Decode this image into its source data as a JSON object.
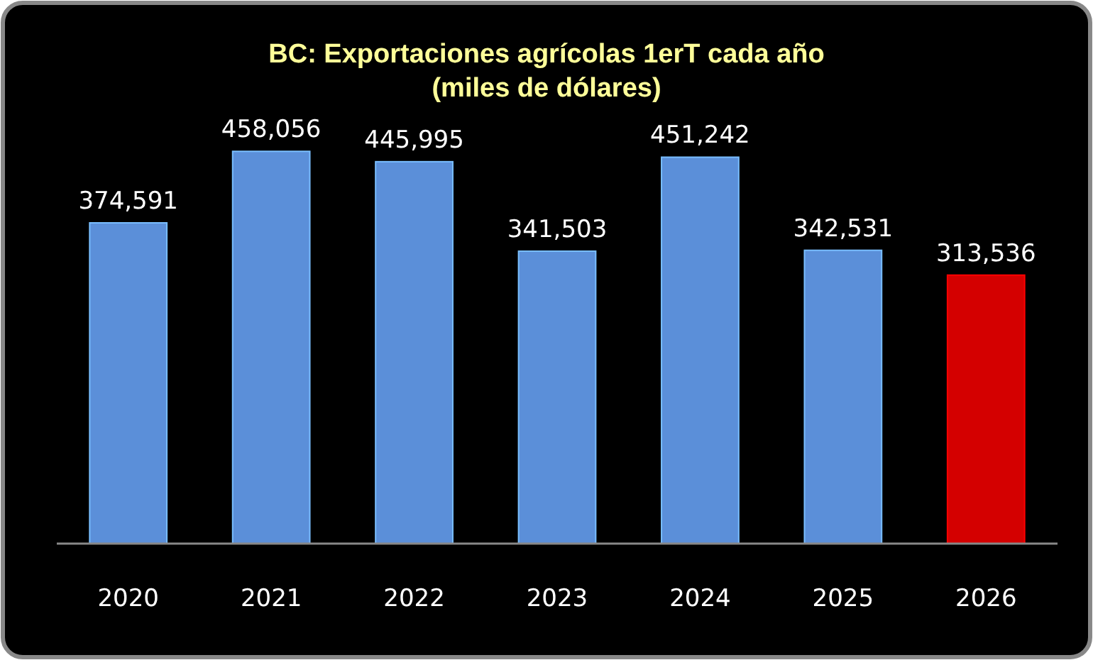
{
  "chart_data": {
    "type": "bar",
    "title": "BC: Exportaciones agrícolas 1erT cada año",
    "subtitle": "(miles de dólares)",
    "categories": [
      "2020",
      "2021",
      "2022",
      "2023",
      "2024",
      "2025",
      "2026"
    ],
    "values": [
      374591,
      458056,
      445995,
      341503,
      451242,
      342531,
      313536
    ],
    "value_labels": [
      "374,591",
      "458,056",
      "445,995",
      "341,503",
      "451,242",
      "342,531",
      "313,536"
    ],
    "colors": [
      "#5b8fd9",
      "#5b8fd9",
      "#5b8fd9",
      "#5b8fd9",
      "#5b8fd9",
      "#5b8fd9",
      "#d40000"
    ]
  }
}
